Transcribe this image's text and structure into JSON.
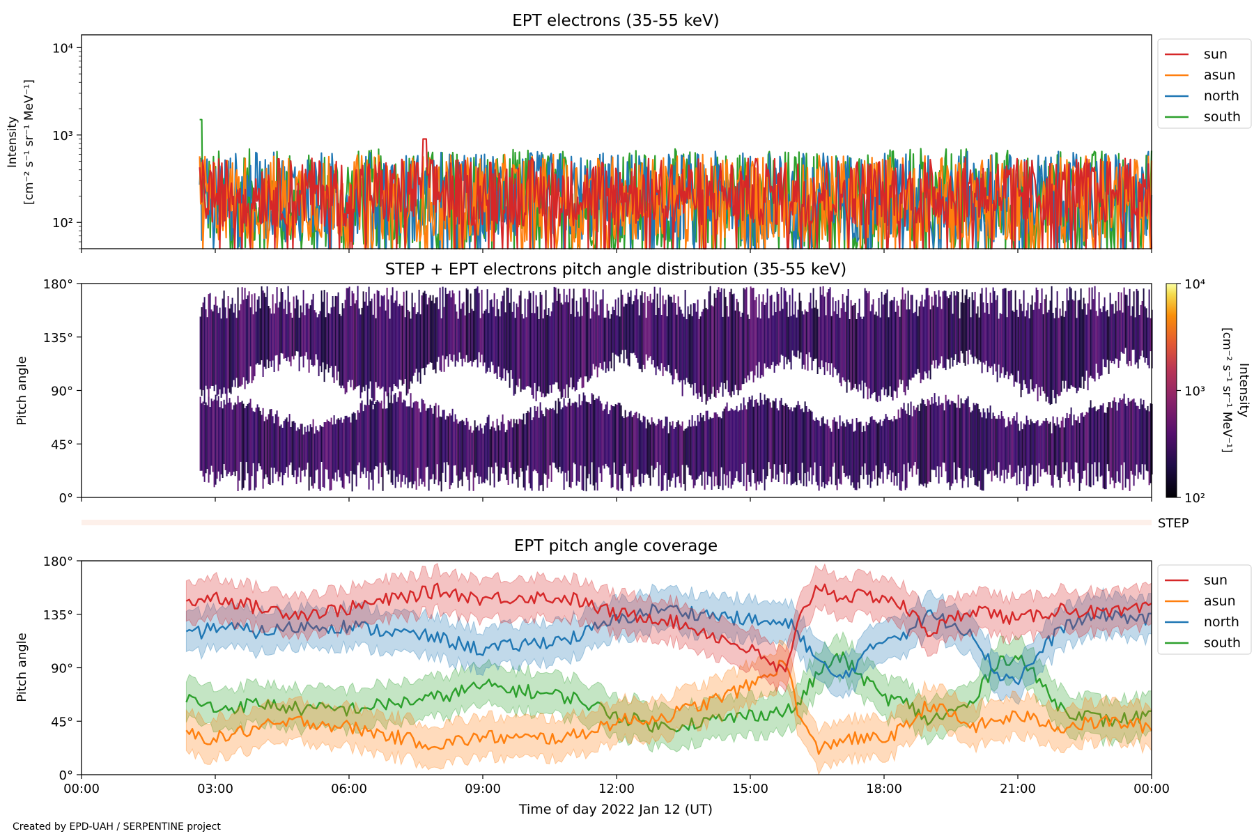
{
  "figure": {
    "credit": "Created by EPD-UAH / SERPENTINE project",
    "xlabel": "Time of day 2022 Jan 12 (UT)",
    "xticks": [
      "00:00",
      "03:00",
      "06:00",
      "09:00",
      "12:00",
      "15:00",
      "18:00",
      "21:00",
      "00:00"
    ],
    "colors": {
      "sun": "#d62728",
      "asun": "#ff7f0e",
      "north": "#1f77b4",
      "south": "#2ca02c",
      "step_strip": "#fdf0ea"
    }
  },
  "chart_data": [
    {
      "type": "line",
      "title": "EPT electrons (35-55 keV)",
      "ylabel_line1": "Intensity",
      "ylabel_line2": "[cm⁻² s⁻¹ sr⁻¹ MeV⁻¹]",
      "yscale": "log",
      "ylim": [
        50,
        14000
      ],
      "xlim_hours": [
        0,
        24
      ],
      "yticks": [
        "10²",
        "10³",
        "10⁴"
      ],
      "legend_position": "outside-right-top",
      "series": [
        {
          "name": "sun",
          "start_hour": 2.65,
          "typical_range": [
            90,
            550
          ],
          "max": 900,
          "peak_hour": 7.7
        },
        {
          "name": "asun",
          "start_hour": 2.65,
          "typical_range": [
            60,
            600
          ],
          "max": 650
        },
        {
          "name": "north",
          "start_hour": 2.65,
          "typical_range": [
            60,
            650
          ],
          "max": 700
        },
        {
          "name": "south",
          "start_hour": 2.65,
          "typical_range": [
            50,
            700
          ],
          "max": 1500,
          "peak_hour": 2.65
        }
      ]
    },
    {
      "type": "heatmap",
      "title": "STEP + EPT electrons pitch angle distribution (35-55 keV)",
      "ylabel": "Pitch angle",
      "ylim_deg": [
        0,
        180
      ],
      "yticks": [
        "0°",
        "45°",
        "90°",
        "135°",
        "180°"
      ],
      "xlim_hours": [
        0,
        24
      ],
      "start_hour": 2.65,
      "colorbar": {
        "label_line1": "Intensity",
        "label_line2": "[cm⁻² s⁻¹ sr⁻¹ MeV⁻¹]",
        "scale": "log",
        "range": [
          100,
          10000
        ],
        "ticks": [
          "10²",
          "10³",
          "10⁴"
        ],
        "colormap": "inferno"
      },
      "step_label": "STEP"
    },
    {
      "type": "line",
      "title": "EPT pitch angle coverage",
      "ylabel": "Pitch angle",
      "ylim_deg": [
        0,
        180
      ],
      "yticks": [
        "0°",
        "45°",
        "90°",
        "135°",
        "180°"
      ],
      "xlim_hours": [
        0,
        24
      ],
      "legend_position": "outside-right-top",
      "series": [
        {
          "name": "sun",
          "x": [
            2.35,
            3,
            4,
            5,
            6,
            7,
            8,
            9,
            10,
            11,
            12,
            13,
            14,
            15,
            15.8,
            16.1,
            16.5,
            17,
            18,
            18.5,
            19,
            20,
            21,
            22,
            23,
            24
          ],
          "y": [
            145,
            150,
            140,
            135,
            140,
            148,
            155,
            148,
            150,
            148,
            135,
            132,
            120,
            105,
            85,
            130,
            160,
            150,
            150,
            140,
            120,
            140,
            130,
            140,
            135,
            140
          ]
        },
        {
          "name": "asun",
          "x": [
            2.35,
            3,
            4,
            5,
            6,
            7,
            8,
            9,
            10,
            11,
            12,
            13,
            14,
            15,
            15.8,
            16.1,
            16.5,
            17,
            18,
            18.5,
            19,
            20,
            21,
            22,
            23,
            24
          ],
          "y": [
            35,
            30,
            40,
            45,
            40,
            32,
            25,
            32,
            30,
            32,
            45,
            48,
            60,
            75,
            95,
            50,
            20,
            30,
            30,
            40,
            60,
            40,
            50,
            40,
            45,
            40
          ]
        },
        {
          "name": "north",
          "x": [
            2.35,
            3,
            4,
            5,
            6,
            7,
            8,
            9,
            10,
            11,
            12,
            13,
            14,
            15,
            16,
            16.5,
            17,
            18,
            18.5,
            19,
            20,
            20.5,
            21,
            22,
            23,
            24
          ],
          "y": [
            115,
            125,
            120,
            125,
            125,
            120,
            115,
            105,
            110,
            115,
            130,
            140,
            135,
            130,
            125,
            95,
            80,
            115,
            120,
            135,
            120,
            85,
            80,
            125,
            135,
            130
          ]
        },
        {
          "name": "south",
          "x": [
            2.35,
            3,
            4,
            5,
            6,
            7,
            8,
            9,
            10,
            11,
            12,
            13,
            14,
            15,
            16,
            16.5,
            17,
            18,
            18.5,
            19,
            20,
            20.5,
            21,
            22,
            23,
            24
          ],
          "y": [
            65,
            55,
            60,
            55,
            55,
            60,
            65,
            75,
            70,
            65,
            50,
            40,
            45,
            50,
            55,
            85,
            100,
            65,
            60,
            45,
            60,
            95,
            100,
            55,
            45,
            50
          ]
        }
      ]
    }
  ]
}
